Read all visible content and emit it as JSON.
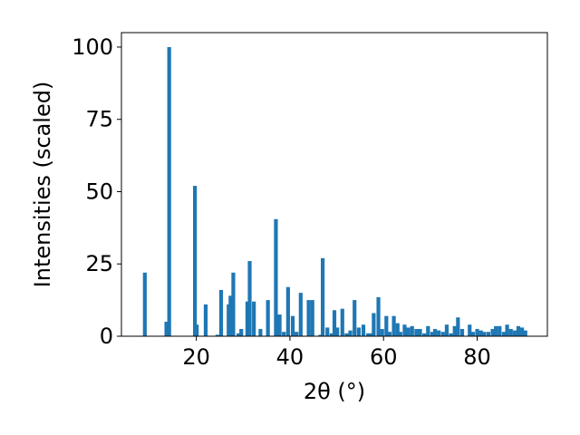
{
  "chart_data": {
    "type": "bar",
    "xlabel": "2θ (°)",
    "ylabel": "Intensities (scaled)",
    "xlim": [
      4.0,
      95.0
    ],
    "ylim": [
      0,
      105
    ],
    "xticks": [
      20,
      40,
      60,
      80
    ],
    "yticks": [
      0,
      25,
      50,
      75,
      100
    ],
    "bar_color": "#1f77b4",
    "grid": false,
    "x": [
      9.0,
      13.6,
      14.2,
      19.7,
      20.1,
      22.0,
      24.5,
      25.3,
      26.9,
      27.3,
      27.9,
      29.0,
      29.6,
      30.9,
      31.4,
      32.3,
      33.7,
      35.3,
      37.0,
      37.8,
      38.7,
      39.6,
      40.6,
      41.4,
      42.3,
      44.0,
      44.8,
      46.5,
      47.0,
      48.0,
      48.9,
      49.5,
      50.1,
      51.2,
      52.1,
      52.9,
      53.8,
      54.7,
      55.7,
      56.7,
      57.4,
      57.9,
      58.9,
      59.7,
      60.6,
      61.3,
      62.2,
      63.0,
      63.6,
      64.5,
      65.3,
      66.1,
      67.0,
      67.8,
      68.7,
      69.5,
      70.4,
      71.0,
      71.8,
      72.7,
      73.5,
      74.4,
      75.2,
      75.9,
      76.8,
      78.4,
      79.1,
      80.0,
      80.8,
      81.5,
      82.4,
      83.3,
      84.0,
      84.8,
      85.7,
      86.4,
      87.2,
      88.0,
      88.8,
      89.6,
      90.3
    ],
    "values": [
      22.0,
      5.0,
      100.0,
      52.0,
      4.0,
      11.0,
      0.5,
      16.0,
      11.0,
      14.0,
      22.0,
      1.0,
      2.5,
      12.0,
      26.0,
      12.0,
      2.5,
      12.5,
      40.5,
      7.5,
      1.5,
      17.0,
      7.0,
      1.5,
      15.0,
      12.5,
      12.5,
      0.5,
      27.0,
      3.0,
      1.0,
      9.0,
      3.0,
      9.5,
      1.0,
      2.0,
      12.5,
      3.0,
      4.0,
      1.0,
      1.0,
      8.0,
      13.5,
      2.5,
      7.0,
      1.5,
      7.0,
      4.5,
      1.5,
      4.0,
      3.0,
      3.5,
      2.5,
      2.5,
      1.0,
      3.5,
      1.5,
      2.5,
      2.0,
      1.5,
      4.0,
      1.0,
      3.5,
      6.5,
      2.5,
      4.0,
      1.5,
      2.5,
      2.0,
      1.5,
      1.5,
      2.5,
      3.5,
      3.5,
      1.5,
      4.0,
      2.5,
      2.0,
      3.5,
      3.0,
      2.0
    ]
  }
}
